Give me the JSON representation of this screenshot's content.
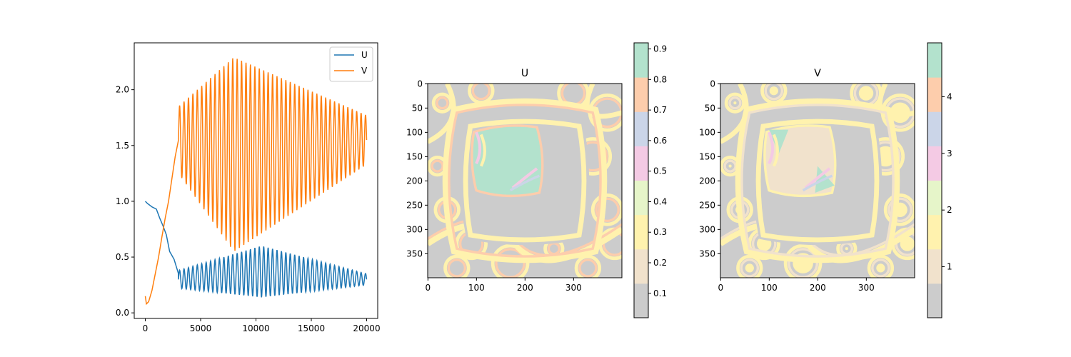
{
  "chart_data": [
    {
      "type": "line",
      "title": "",
      "xlabel": "",
      "ylabel": "",
      "xlim": [
        -1000,
        21000
      ],
      "ylim": [
        -0.05,
        2.42
      ],
      "x_ticks": [
        0,
        5000,
        10000,
        15000,
        20000
      ],
      "x_tick_labels": [
        "0",
        "5000",
        "10000",
        "15000",
        "20000"
      ],
      "y_ticks": [
        0.0,
        0.5,
        1.0,
        1.5,
        2.0
      ],
      "y_tick_labels": [
        "0.0",
        "0.5",
        "1.0",
        "1.5",
        "2.0"
      ],
      "grid": false,
      "legend_position": "top-right",
      "series": [
        {
          "name": "U",
          "color": "#1f77b4",
          "x": [
            0,
            200,
            600,
            1000,
            1300,
            1600,
            1900,
            2200,
            2600,
            3000
          ],
          "values": [
            1.0,
            0.98,
            0.95,
            0.93,
            0.85,
            0.78,
            0.7,
            0.55,
            0.48,
            0.35
          ],
          "oscillation": {
            "start": 3000,
            "end": 20000,
            "period": 400,
            "mid_start": 0.3,
            "mid_peak": 0.37,
            "amp_start": 0.08,
            "amp_peak": 0.23,
            "amp_end": 0.05,
            "peak_x": 10500
          }
        },
        {
          "name": "V",
          "color": "#ff7f0e",
          "x": [
            0,
            100,
            300,
            600,
            900,
            1200,
            1500,
            1800,
            2100,
            2400,
            2700,
            3000
          ],
          "values": [
            0.15,
            0.08,
            0.1,
            0.2,
            0.35,
            0.5,
            0.68,
            0.85,
            1.0,
            1.2,
            1.4,
            1.55
          ],
          "oscillation": {
            "start": 3000,
            "end": 20000,
            "period": 400,
            "mid_start": 1.55,
            "mid_peak": 1.42,
            "amp_start": 0.3,
            "amp_peak": 0.87,
            "amp_end": 0.22,
            "peak_x": 8000
          }
        }
      ]
    },
    {
      "type": "heatmap",
      "title": "U",
      "xlabel": "",
      "ylabel": "",
      "grid_size": 400,
      "x_ticks": [
        0,
        100,
        200,
        300
      ],
      "x_tick_labels": [
        "0",
        "100",
        "200",
        "300"
      ],
      "y_ticks": [
        0,
        50,
        100,
        150,
        200,
        250,
        300,
        350
      ],
      "y_tick_labels": [
        "0",
        "50",
        "100",
        "150",
        "200",
        "250",
        "300",
        "350"
      ],
      "colormap": "Pastel2",
      "colorbar": {
        "vmin": 0.02,
        "vmax": 0.92,
        "ticks": [
          0.1,
          0.2,
          0.3,
          0.4,
          0.5,
          0.6,
          0.7,
          0.8,
          0.9
        ],
        "tick_labels": [
          "0.1",
          "0.2",
          "0.3",
          "0.4",
          "0.5",
          "0.6",
          "0.7",
          "0.8",
          "0.9"
        ]
      }
    },
    {
      "type": "heatmap",
      "title": "V",
      "xlabel": "",
      "ylabel": "",
      "grid_size": 400,
      "x_ticks": [
        0,
        100,
        200,
        300
      ],
      "x_tick_labels": [
        "0",
        "100",
        "200",
        "300"
      ],
      "y_ticks": [
        0,
        50,
        100,
        150,
        200,
        250,
        300,
        350
      ],
      "y_tick_labels": [
        "0",
        "50",
        "100",
        "150",
        "200",
        "250",
        "300",
        "350"
      ],
      "colormap": "Pastel2",
      "colorbar": {
        "vmin": 0.1,
        "vmax": 4.95,
        "ticks": [
          1,
          2,
          3,
          4
        ],
        "tick_labels": [
          "1",
          "2",
          "3",
          "4"
        ]
      }
    }
  ],
  "colormap_colors": [
    "#cccccc",
    "#f1e2cc",
    "#fff2ae",
    "#e6f5c9",
    "#f4cae4",
    "#cbd5e8",
    "#fdcdac",
    "#b3e2cd"
  ]
}
